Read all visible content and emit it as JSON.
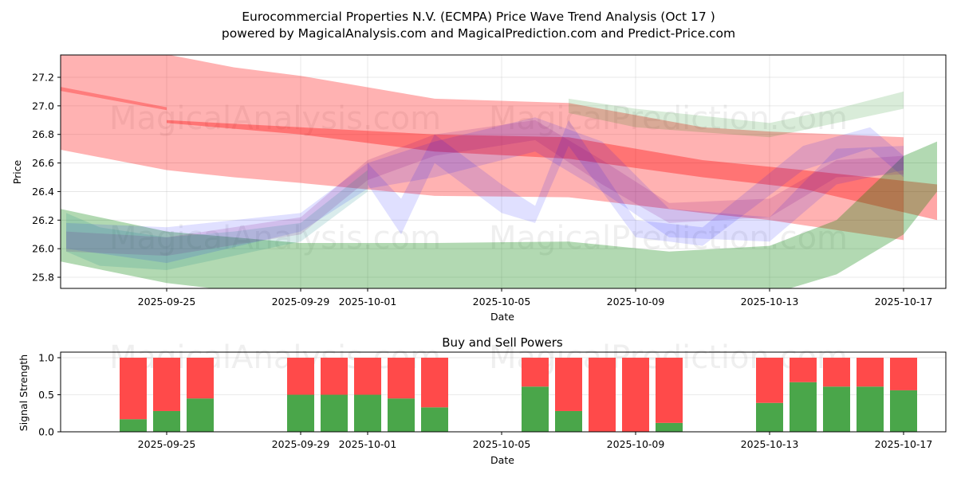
{
  "chart_data": [
    {
      "type": "area",
      "title": "Eurocommercial Properties N.V. (ECMPA) Price Wave Trend Analysis (Oct 17 )",
      "subtitle": "powered by MagicalAnalysis.com and MagicalPrediction.com and Predict-Price.com",
      "xlabel": "Date",
      "ylabel": "Price",
      "ylim": [
        25.72,
        27.36
      ],
      "xlim": [
        "2025-09-21",
        "2025-10-18"
      ],
      "grid": true,
      "x_ticks": [
        "2025-09-25",
        "2025-09-29",
        "2025-10-01",
        "2025-10-05",
        "2025-10-09",
        "2025-10-13",
        "2025-10-17"
      ],
      "y_ticks": [
        "25.8",
        "26.0",
        "26.2",
        "26.4",
        "26.6",
        "26.8",
        "27.0",
        "27.2"
      ],
      "watermarks": [
        "MagicalAnalysis.com",
        "MagicalPrediction.com"
      ],
      "bands": [
        {
          "name": "red-upper-band",
          "color": "#ff0000",
          "opacity": 0.3,
          "x": [
            "2025-09-21",
            "2025-09-25",
            "2025-09-27",
            "2025-09-29",
            "2025-10-03",
            "2025-10-07",
            "2025-10-11",
            "2025-10-13",
            "2025-10-17"
          ],
          "upper": [
            27.38,
            27.36,
            27.27,
            27.21,
            27.05,
            27.02,
            26.85,
            26.82,
            26.78
          ],
          "lower": [
            26.73,
            26.55,
            26.5,
            26.46,
            26.37,
            26.36,
            26.25,
            26.2,
            26.06
          ]
        },
        {
          "name": "red-upper-band-2",
          "color": "#ff0000",
          "opacity": 0.3,
          "x": [
            "2025-09-21",
            "2025-09-25"
          ],
          "upper": [
            27.17,
            26.99
          ],
          "lower": [
            27.14,
            26.97
          ]
        },
        {
          "name": "red-main-trend",
          "color": "#ff0000",
          "opacity": 0.35,
          "x": [
            "2025-09-25",
            "2025-09-29",
            "2025-10-03",
            "2025-10-07",
            "2025-10-11",
            "2025-10-14",
            "2025-10-18"
          ],
          "upper": [
            26.9,
            26.85,
            26.8,
            26.78,
            26.62,
            26.55,
            26.45
          ],
          "lower": [
            26.88,
            26.8,
            26.68,
            26.63,
            26.5,
            26.42,
            26.2
          ]
        },
        {
          "name": "green-lower-band",
          "color": "#008000",
          "opacity": 0.3,
          "x": [
            "2025-09-21",
            "2025-09-25",
            "2025-09-29",
            "2025-10-03",
            "2025-10-07",
            "2025-10-10",
            "2025-10-13",
            "2025-10-15",
            "2025-10-17",
            "2025-10-18"
          ],
          "upper": [
            26.32,
            26.12,
            26.04,
            26.04,
            26.05,
            25.98,
            26.02,
            26.2,
            26.65,
            26.75
          ],
          "lower": [
            25.95,
            25.76,
            25.65,
            25.62,
            25.62,
            25.58,
            25.68,
            25.82,
            26.1,
            26.4
          ]
        },
        {
          "name": "green-upper-band",
          "color": "#008000",
          "opacity": 0.15,
          "x": [
            "2025-10-07",
            "2025-10-09",
            "2025-10-13",
            "2025-10-15",
            "2025-10-17"
          ],
          "upper": [
            27.05,
            26.98,
            26.88,
            26.98,
            27.1
          ],
          "lower": [
            26.95,
            26.85,
            26.78,
            26.88,
            26.98
          ]
        },
        {
          "name": "blue-wave-1",
          "color": "#0000ff",
          "opacity": 0.12,
          "x": [
            "2025-09-22",
            "2025-09-25",
            "2025-09-29",
            "2025-10-01",
            "2025-10-03",
            "2025-10-06",
            "2025-10-08",
            "2025-10-10",
            "2025-10-13",
            "2025-10-15",
            "2025-10-17"
          ],
          "upper": [
            26.18,
            26.15,
            26.25,
            26.6,
            26.75,
            26.92,
            26.75,
            26.28,
            26.22,
            26.7,
            26.72
          ],
          "lower": [
            26.0,
            25.9,
            26.12,
            26.42,
            26.5,
            26.68,
            26.4,
            26.08,
            26.05,
            26.45,
            26.55
          ]
        },
        {
          "name": "blue-wave-2",
          "color": "#0000ff",
          "opacity": 0.12,
          "x": [
            "2025-10-01",
            "2025-10-02",
            "2025-10-03",
            "2025-10-05",
            "2025-10-06",
            "2025-10-07",
            "2025-10-09",
            "2025-10-11",
            "2025-10-14",
            "2025-10-16",
            "2025-10-17"
          ],
          "upper": [
            26.6,
            26.35,
            26.8,
            26.45,
            26.3,
            26.9,
            26.2,
            26.15,
            26.72,
            26.85,
            26.65
          ],
          "lower": [
            26.45,
            26.1,
            26.6,
            26.25,
            26.18,
            26.72,
            26.08,
            26.02,
            26.55,
            26.7,
            26.5
          ]
        },
        {
          "name": "purple-wave",
          "color": "#800080",
          "opacity": 0.15,
          "x": [
            "2025-09-22",
            "2025-09-25",
            "2025-09-29",
            "2025-10-01",
            "2025-10-03",
            "2025-10-06",
            "2025-10-08",
            "2025-10-10",
            "2025-10-13",
            "2025-10-15",
            "2025-10-17"
          ],
          "upper": [
            26.12,
            26.08,
            26.22,
            26.62,
            26.8,
            26.9,
            26.62,
            26.32,
            26.35,
            26.62,
            26.65
          ],
          "lower": [
            25.98,
            25.95,
            26.1,
            26.48,
            26.65,
            26.76,
            26.45,
            26.18,
            26.22,
            26.5,
            26.52
          ]
        },
        {
          "name": "teal-wave",
          "color": "#008080",
          "opacity": 0.15,
          "x": [
            "2025-09-22",
            "2025-09-23",
            "2025-09-25",
            "2025-09-27",
            "2025-09-29",
            "2025-10-01"
          ],
          "upper": [
            26.25,
            26.15,
            26.08,
            26.12,
            26.18,
            26.55
          ],
          "lower": [
            25.98,
            25.88,
            25.85,
            25.95,
            26.05,
            26.4
          ]
        }
      ]
    },
    {
      "type": "bar",
      "title": "Buy and Sell Powers",
      "xlabel": "Date",
      "ylabel": "Signal Strength",
      "ylim": [
        0,
        1.05
      ],
      "grid": true,
      "x_ticks": [
        "2025-09-25",
        "2025-09-29",
        "2025-10-01",
        "2025-10-05",
        "2025-10-09",
        "2025-10-13",
        "2025-10-17"
      ],
      "y_ticks": [
        "0.0",
        "0.5",
        "1.0"
      ],
      "categories": [
        "2025-09-24",
        "2025-09-25",
        "2025-09-26",
        "2025-09-29",
        "2025-09-30",
        "2025-10-01",
        "2025-10-02",
        "2025-10-03",
        "2025-10-06",
        "2025-10-07",
        "2025-10-08",
        "2025-10-09",
        "2025-10-10",
        "2025-10-13",
        "2025-10-14",
        "2025-10-15",
        "2025-10-16",
        "2025-10-17"
      ],
      "series": [
        {
          "name": "Buy Power",
          "color": "#4aa64a",
          "values": [
            0.17,
            0.28,
            0.45,
            0.5,
            0.5,
            0.5,
            0.45,
            0.33,
            0.61,
            0.28,
            0.0,
            0.0,
            0.12,
            0.39,
            0.67,
            0.61,
            0.61,
            0.56
          ]
        },
        {
          "name": "Sell Power",
          "color": "#ff4a4a",
          "values": [
            0.83,
            0.72,
            0.55,
            0.5,
            0.5,
            0.5,
            0.55,
            0.67,
            0.39,
            0.72,
            1.0,
            1.0,
            0.88,
            0.61,
            0.33,
            0.39,
            0.39,
            0.44
          ]
        }
      ]
    }
  ]
}
